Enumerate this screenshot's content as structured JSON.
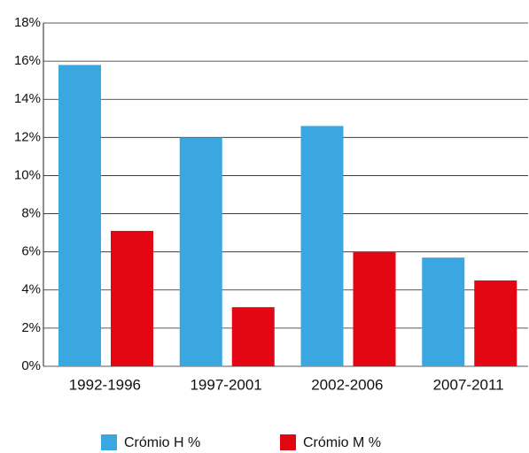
{
  "chart_data": {
    "type": "bar",
    "categories": [
      "1992-1996",
      "1997-2001",
      "2002-2006",
      "2007-2011"
    ],
    "series": [
      {
        "name": "Crómio H %",
        "color": "#3aa7e0",
        "values": [
          15.8,
          12.0,
          12.6,
          5.7
        ]
      },
      {
        "name": "Crómio M %",
        "color": "#e30613",
        "values": [
          7.1,
          3.1,
          6.0,
          4.5
        ]
      }
    ],
    "ylim": [
      0,
      18
    ],
    "yticks": [
      {
        "value": 0,
        "label": "0%"
      },
      {
        "value": 2,
        "label": "2%"
      },
      {
        "value": 4,
        "label": "4%"
      },
      {
        "value": 6,
        "label": "6%"
      },
      {
        "value": 8,
        "label": "8%"
      },
      {
        "value": 10,
        "label": "10%"
      },
      {
        "value": 12,
        "label": "12%"
      },
      {
        "value": 14,
        "label": "14%"
      },
      {
        "value": 16,
        "label": "16%"
      },
      {
        "value": 18,
        "label": "18%"
      }
    ],
    "grid": true
  }
}
